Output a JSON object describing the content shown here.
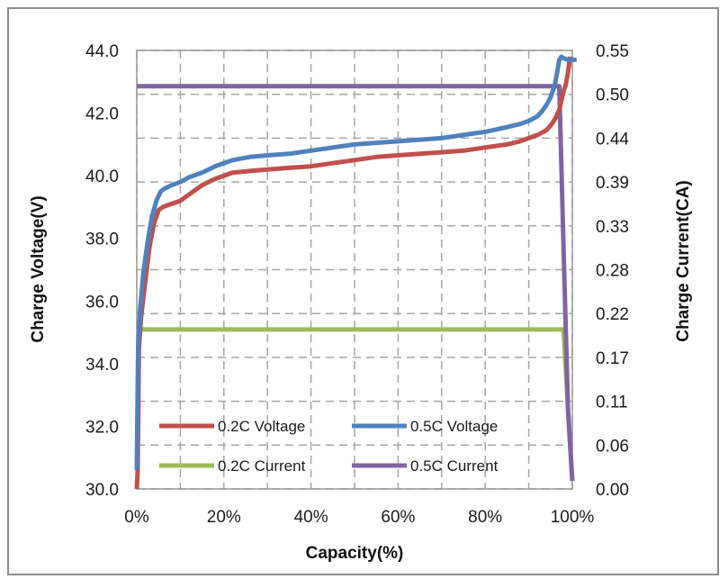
{
  "chart_data": {
    "type": "line",
    "title": "",
    "xlabel": "Capacity(%)",
    "ylabel": "Charge Voltage(V)",
    "y2label": "Charge Current(CA)",
    "xlim": [
      0,
      100
    ],
    "ylim": [
      30.0,
      44.0
    ],
    "y2lim": [
      0.0,
      0.55
    ],
    "grid": true,
    "legend_position": "lower-left",
    "x_ticks": [
      "0%",
      "20%",
      "40%",
      "60%",
      "80%",
      "100%"
    ],
    "x_tick_values": [
      0,
      20,
      40,
      60,
      80,
      100
    ],
    "y_ticks": [
      "30.0",
      "32.0",
      "34.0",
      "36.0",
      "38.0",
      "40.0",
      "42.0",
      "44.0"
    ],
    "y_tick_values": [
      30,
      32,
      34,
      36,
      38,
      40,
      42,
      44
    ],
    "y2_ticks": [
      "0.00",
      "0.06",
      "0.11",
      "0.17",
      "0.22",
      "0.28",
      "0.33",
      "0.39",
      "0.44",
      "0.50",
      "0.55"
    ],
    "y2_tick_values": [
      0.0,
      0.055,
      0.11,
      0.165,
      0.22,
      0.275,
      0.33,
      0.385,
      0.44,
      0.495,
      0.55
    ],
    "series": [
      {
        "name": "0.2C Voltage",
        "axis": "left",
        "color": "#c0504d",
        "x": [
          0,
          0.2,
          0.5,
          1,
          2,
          3,
          4,
          5,
          6,
          8,
          10,
          12,
          15,
          18,
          22,
          26,
          30,
          35,
          40,
          45,
          50,
          55,
          60,
          65,
          70,
          75,
          80,
          85,
          88,
          90,
          92,
          94,
          95,
          96,
          97,
          97.5,
          98,
          98.5,
          99,
          99.5
        ],
        "y": [
          30.0,
          30.6,
          34.5,
          35.5,
          36.7,
          37.8,
          38.5,
          38.9,
          39.0,
          39.1,
          39.2,
          39.4,
          39.7,
          39.9,
          40.1,
          40.15,
          40.2,
          40.25,
          40.3,
          40.4,
          40.5,
          40.6,
          40.65,
          40.7,
          40.75,
          40.8,
          40.9,
          41.0,
          41.1,
          41.2,
          41.3,
          41.45,
          41.6,
          41.8,
          42.1,
          42.4,
          42.7,
          42.9,
          43.3,
          43.8
        ]
      },
      {
        "name": "0.5C Voltage",
        "axis": "left",
        "color": "#4f81bd",
        "x": [
          0,
          0.3,
          0.8,
          1.5,
          2.5,
          3.5,
          4.5,
          5.5,
          6.5,
          8,
          10,
          12,
          15,
          18,
          22,
          26,
          30,
          35,
          40,
          45,
          50,
          55,
          60,
          65,
          70,
          75,
          80,
          85,
          88,
          90,
          92,
          93,
          94,
          95,
          96,
          96.5,
          97,
          97.5,
          98,
          99,
          100,
          101
        ],
        "y": [
          30.6,
          34.5,
          35.8,
          36.9,
          37.9,
          38.7,
          39.2,
          39.5,
          39.6,
          39.7,
          39.8,
          39.95,
          40.1,
          40.3,
          40.5,
          40.6,
          40.65,
          40.7,
          40.8,
          40.9,
          41.0,
          41.05,
          41.1,
          41.15,
          41.2,
          41.3,
          41.4,
          41.55,
          41.65,
          41.75,
          41.9,
          42.05,
          42.25,
          42.5,
          42.9,
          43.3,
          43.7,
          43.8,
          43.75,
          43.7,
          43.7,
          43.7
        ]
      },
      {
        "name": "0.2C Current",
        "axis": "right",
        "color": "#9bbb59",
        "x": [
          0,
          98,
          99,
          100
        ],
        "y": [
          0.2,
          0.2,
          0.1,
          0.01
        ]
      },
      {
        "name": "0.5C Current",
        "axis": "right",
        "color": "#8064a2",
        "x": [
          0,
          97,
          98,
          99,
          100
        ],
        "y": [
          0.505,
          0.505,
          0.3,
          0.1,
          0.01
        ]
      }
    ]
  }
}
